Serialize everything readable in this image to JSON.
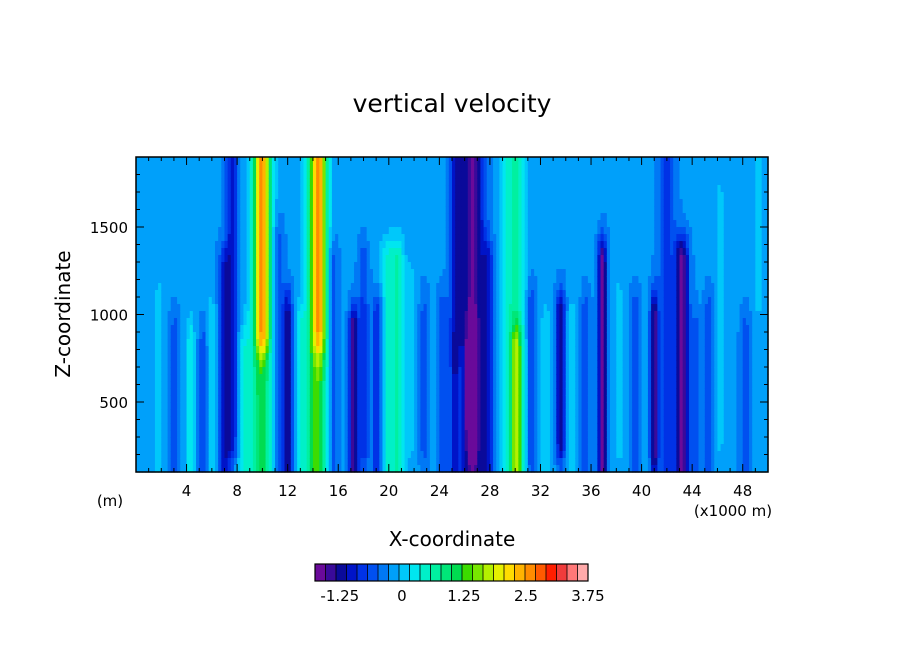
{
  "chart_data": {
    "type": "heatmap",
    "title": "vertical velocity",
    "xlabel": "X-coordinate",
    "ylabel": "Z-coordinate",
    "x_unit_left": "(m)",
    "x_unit_right": "(x1000 m)",
    "xlim": [
      0,
      50
    ],
    "ylim": [
      100,
      1900
    ],
    "x_ticks": [
      4,
      8,
      12,
      16,
      20,
      24,
      28,
      32,
      36,
      40,
      44,
      48
    ],
    "y_ticks": [
      500,
      1000,
      1500
    ],
    "colorbar": {
      "min": -1.75,
      "max": 3.75,
      "step": 0.25,
      "tick_values": [
        -1.25,
        0,
        1.25,
        2.5,
        3.75
      ],
      "tick_labels": [
        "-1.25",
        "0",
        "1.25",
        "2.5",
        "3.75"
      ],
      "colors": [
        "#6a0a9a",
        "#3a0a9a",
        "#0a0a9a",
        "#0014c8",
        "#0032e6",
        "#0050f0",
        "#0078f5",
        "#00a0fa",
        "#00c8fa",
        "#00e6f0",
        "#00f0c8",
        "#00f0a0",
        "#00e678",
        "#00dc50",
        "#3cdc00",
        "#78e600",
        "#b4f000",
        "#e6f000",
        "#ffdc00",
        "#ffb400",
        "#ff8c00",
        "#ff5a00",
        "#ff1e00",
        "#f03c3c",
        "#ff7878",
        "#ffaaaa"
      ]
    },
    "background_value": 0.05,
    "features": [
      {
        "x": 1.8,
        "z0": 100,
        "z1": 1100,
        "w": 0.4,
        "v": 0.25
      },
      {
        "x": 3.0,
        "z0": 100,
        "z1": 900,
        "w": 0.35,
        "v": -0.4
      },
      {
        "x": 4.3,
        "z0": 100,
        "z1": 850,
        "w": 0.35,
        "v": 0.6
      },
      {
        "x": 5.3,
        "z0": 100,
        "z1": 800,
        "w": 0.35,
        "v": -0.5
      },
      {
        "x": 6.0,
        "z0": 100,
        "z1": 950,
        "w": 0.35,
        "v": 0.5
      },
      {
        "x": 7.0,
        "z0": 100,
        "z1": 1250,
        "w": 0.45,
        "v": -0.9
      },
      {
        "x": 7.6,
        "z0": 300,
        "z1": 1900,
        "w": 0.5,
        "v": -0.9
      },
      {
        "x": 8.5,
        "z0": 100,
        "z1": 800,
        "w": 0.5,
        "v": 0.6
      },
      {
        "x": 9.9,
        "z0": 100,
        "z1": 1900,
        "w": 0.85,
        "v": 1.6
      },
      {
        "x": 10.0,
        "z0": 900,
        "z1": 1900,
        "w": 0.55,
        "v": 1.7
      },
      {
        "x": 11.3,
        "z0": 100,
        "z1": 1400,
        "w": 0.4,
        "v": -0.5
      },
      {
        "x": 12.0,
        "z0": 100,
        "z1": 1000,
        "w": 0.35,
        "v": -1.2
      },
      {
        "x": 13.0,
        "z0": 100,
        "z1": 900,
        "w": 0.35,
        "v": 0.6
      },
      {
        "x": 14.3,
        "z0": 100,
        "z1": 1900,
        "w": 0.85,
        "v": 1.9
      },
      {
        "x": 14.5,
        "z0": 900,
        "z1": 1900,
        "w": 0.55,
        "v": 1.4
      },
      {
        "x": 15.6,
        "z0": 100,
        "z1": 1300,
        "w": 0.4,
        "v": -0.5
      },
      {
        "x": 17.2,
        "z0": 100,
        "z1": 900,
        "w": 0.35,
        "v": -1.6
      },
      {
        "x": 18.0,
        "z0": 200,
        "z1": 1250,
        "w": 0.4,
        "v": -0.6
      },
      {
        "x": 19.1,
        "z0": 100,
        "z1": 1000,
        "w": 0.45,
        "v": -0.8
      },
      {
        "x": 20.0,
        "z0": 100,
        "z1": 1300,
        "w": 0.7,
        "v": 0.8
      },
      {
        "x": 20.8,
        "z0": 100,
        "z1": 1300,
        "w": 0.5,
        "v": 0.7
      },
      {
        "x": 21.7,
        "z0": 300,
        "z1": 1150,
        "w": 0.4,
        "v": 0.35
      },
      {
        "x": 22.8,
        "z0": 250,
        "z1": 1000,
        "w": 0.35,
        "v": -0.4
      },
      {
        "x": 24.3,
        "z0": 100,
        "z1": 1000,
        "w": 0.4,
        "v": -0.5
      },
      {
        "x": 25.2,
        "z0": 100,
        "z1": 700,
        "w": 0.35,
        "v": -0.9
      },
      {
        "x": 25.3,
        "z0": 900,
        "z1": 1900,
        "w": 0.5,
        "v": -0.9
      },
      {
        "x": 26.6,
        "z0": 100,
        "z1": 1900,
        "w": 0.9,
        "v": -1.6
      },
      {
        "x": 26.6,
        "z0": 400,
        "z1": 800,
        "w": 0.35,
        "v": -2.3
      },
      {
        "x": 27.8,
        "z0": 100,
        "z1": 1300,
        "w": 0.45,
        "v": -0.8
      },
      {
        "x": 29.1,
        "z0": 100,
        "z1": 1900,
        "w": 0.4,
        "v": 0.4
      },
      {
        "x": 30.0,
        "z0": 100,
        "z1": 1900,
        "w": 0.75,
        "v": 1.1
      },
      {
        "x": 30.1,
        "z0": 100,
        "z1": 800,
        "w": 0.45,
        "v": 1.3
      },
      {
        "x": 31.3,
        "z0": 200,
        "z1": 1050,
        "w": 0.35,
        "v": -0.6
      },
      {
        "x": 32.4,
        "z0": 150,
        "z1": 950,
        "w": 0.35,
        "v": 0.4
      },
      {
        "x": 33.6,
        "z0": 300,
        "z1": 1000,
        "w": 0.35,
        "v": -1.3
      },
      {
        "x": 34.5,
        "z0": 100,
        "z1": 950,
        "w": 0.35,
        "v": 0.35
      },
      {
        "x": 35.6,
        "z0": 100,
        "z1": 1000,
        "w": 0.35,
        "v": -0.5
      },
      {
        "x": 36.9,
        "z0": 100,
        "z1": 1300,
        "w": 0.35,
        "v": -1.6
      },
      {
        "x": 38.2,
        "z0": 250,
        "z1": 1100,
        "w": 0.35,
        "v": 0.3
      },
      {
        "x": 39.5,
        "z0": 100,
        "z1": 1000,
        "w": 0.35,
        "v": -0.5
      },
      {
        "x": 41.0,
        "z0": 200,
        "z1": 1000,
        "w": 0.3,
        "v": -1.4
      },
      {
        "x": 42.0,
        "z0": 100,
        "z1": 1900,
        "w": 0.7,
        "v": -0.6
      },
      {
        "x": 43.2,
        "z0": 100,
        "z1": 1300,
        "w": 0.5,
        "v": -1.7
      },
      {
        "x": 44.3,
        "z0": 100,
        "z1": 900,
        "w": 0.35,
        "v": -0.4
      },
      {
        "x": 45.3,
        "z0": 150,
        "z1": 1000,
        "w": 0.35,
        "v": -0.45
      },
      {
        "x": 46.2,
        "z0": 300,
        "z1": 1650,
        "w": 0.3,
        "v": 0.3
      },
      {
        "x": 48.2,
        "z0": 100,
        "z1": 900,
        "w": 0.4,
        "v": -0.4
      },
      {
        "x": 49.3,
        "z0": 1100,
        "z1": 1900,
        "w": 0.45,
        "v": 0.3
      }
    ]
  }
}
